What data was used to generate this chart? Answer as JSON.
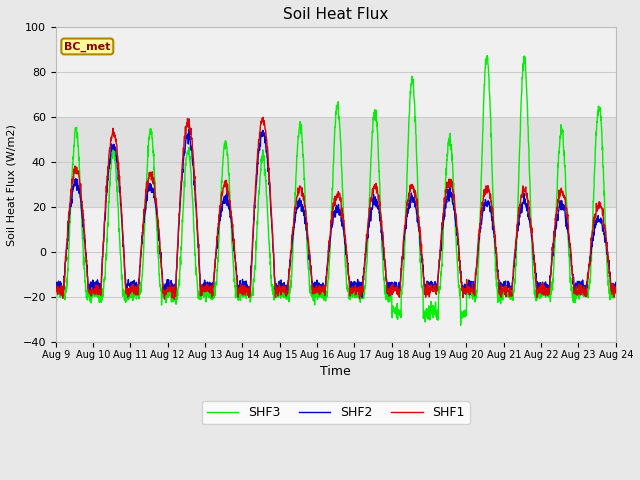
{
  "title": "Soil Heat Flux",
  "xlabel": "Time",
  "ylabel": "Soil Heat Flux (W/m2)",
  "ylim": [
    -40,
    100
  ],
  "yticks": [
    -40,
    -20,
    0,
    20,
    40,
    60,
    80,
    100
  ],
  "x_labels": [
    "Aug 9",
    "Aug 10",
    "Aug 11",
    "Aug 12",
    "Aug 13",
    "Aug 14",
    "Aug 15",
    "Aug 16",
    "Aug 17",
    "Aug 18",
    "Aug 19",
    "Aug 20",
    "Aug 21",
    "Aug 22",
    "Aug 23",
    "Aug 24"
  ],
  "shf1_color": "#dd0000",
  "shf2_color": "#0000cc",
  "shf3_color": "#00ee00",
  "legend_label1": "SHF1",
  "legend_label2": "SHF2",
  "legend_label3": "SHF3",
  "bc_met_label": "BC_met",
  "bc_met_bg": "#ffff99",
  "bc_met_border": "#aa8800",
  "bc_met_text": "#880000",
  "shaded_band_lower": 20,
  "shaded_band_upper": 60,
  "shaded_band_color": "#e0e0e0",
  "plot_bg_color": "#f0f0f0",
  "fig_bg_color": "#e8e8e8",
  "grid_color": "#cccccc",
  "line_width": 1.0
}
